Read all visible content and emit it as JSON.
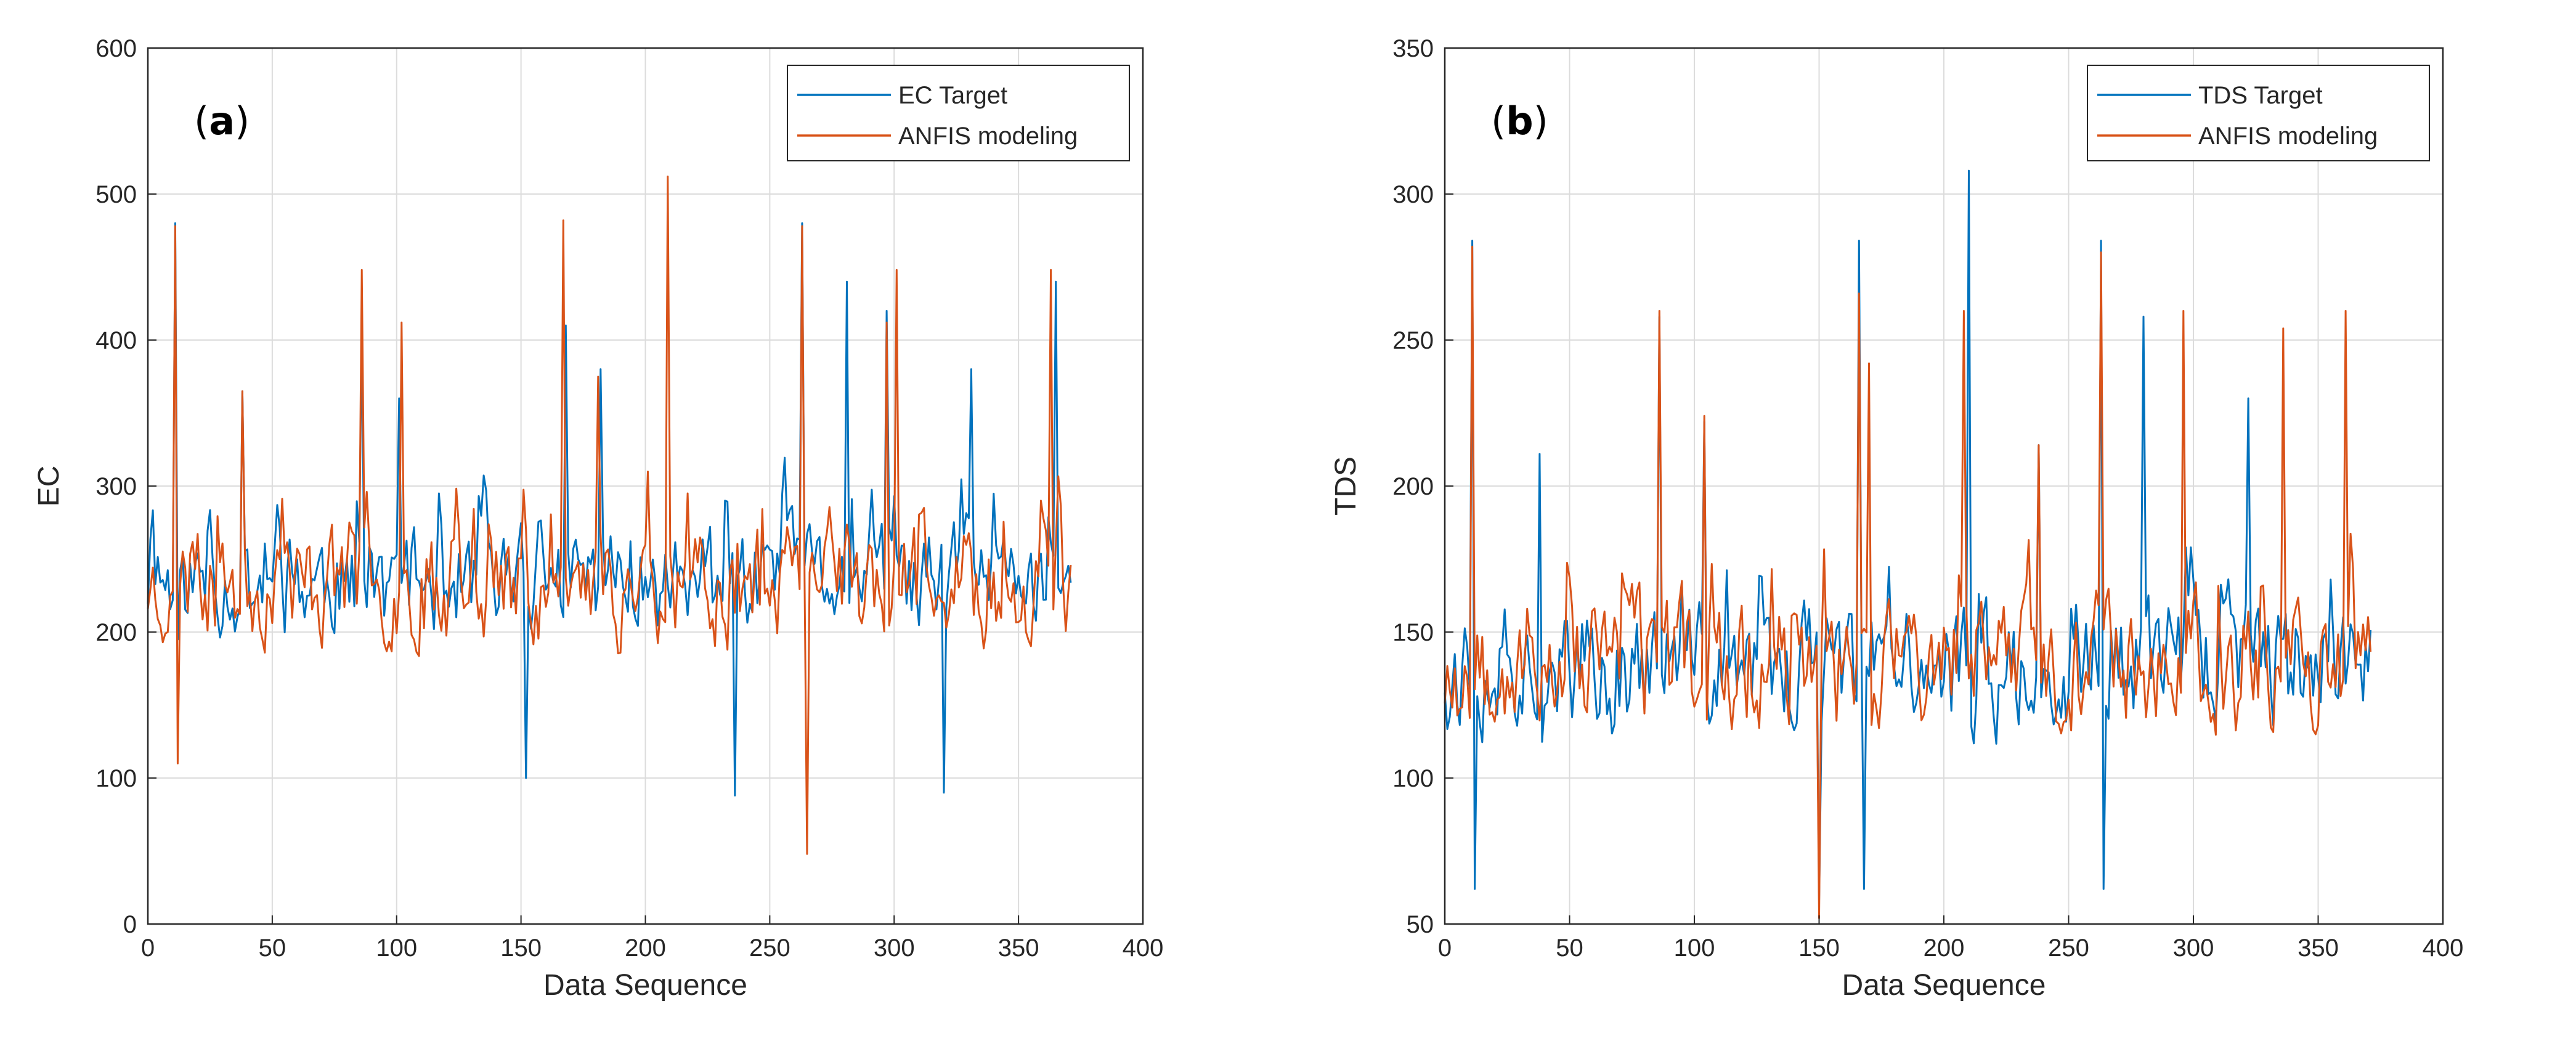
{
  "chart_data": [
    {
      "type": "line",
      "panel_label": "a",
      "title": "",
      "xlabel": "Data Sequence",
      "ylabel": "EC",
      "xlim": [
        0,
        400
      ],
      "ylim": [
        0,
        600
      ],
      "xticks": [
        0,
        50,
        100,
        150,
        200,
        250,
        300,
        350,
        400
      ],
      "yticks": [
        0,
        100,
        200,
        300,
        400,
        500,
        600
      ],
      "grid": true,
      "legend_position": "top-right",
      "n_points": 372,
      "series": [
        {
          "name": "EC Target",
          "color": "#0072BD",
          "seed": 11,
          "base": 235,
          "spread": 55,
          "low": 88,
          "high": 480,
          "spikes": [
            [
              11,
              480
            ],
            [
              38,
              365
            ],
            [
              86,
              410
            ],
            [
              101,
              360
            ],
            [
              152,
              100
            ],
            [
              168,
              410
            ],
            [
              182,
              380
            ],
            [
              236,
              88
            ],
            [
              263,
              480
            ],
            [
              281,
              440
            ],
            [
              297,
              420
            ],
            [
              320,
              90
            ],
            [
              331,
              380
            ],
            [
              365,
              440
            ]
          ]
        },
        {
          "name": "ANFIS modeling",
          "color": "#D95319",
          "seed": 23,
          "base": 232,
          "spread": 58,
          "low": 48,
          "high": 512,
          "spikes": [
            [
              11,
              478
            ],
            [
              12,
              110
            ],
            [
              38,
              365
            ],
            [
              86,
              448
            ],
            [
              102,
              412
            ],
            [
              167,
              482
            ],
            [
              181,
              375
            ],
            [
              209,
              512
            ],
            [
              265,
              48
            ],
            [
              263,
              478
            ],
            [
              301,
              448
            ],
            [
              297,
              412
            ],
            [
              363,
              448
            ]
          ]
        }
      ]
    },
    {
      "type": "line",
      "panel_label": "b",
      "title": "",
      "xlabel": "Data Sequence",
      "ylabel": "TDS",
      "xlim": [
        0,
        400
      ],
      "ylim": [
        50,
        350
      ],
      "xticks": [
        0,
        50,
        100,
        150,
        200,
        250,
        300,
        350,
        400
      ],
      "yticks": [
        50,
        100,
        150,
        200,
        250,
        300,
        350
      ],
      "grid": true,
      "legend_position": "top-right",
      "n_points": 372,
      "series": [
        {
          "name": "TDS Target",
          "color": "#0072BD",
          "seed": 37,
          "base": 138,
          "spread": 32,
          "low": 60,
          "high": 308,
          "spikes": [
            [
              11,
              284
            ],
            [
              12,
              62
            ],
            [
              38,
              211
            ],
            [
              86,
              258
            ],
            [
              104,
              222
            ],
            [
              150,
              58
            ],
            [
              166,
              284
            ],
            [
              168,
              62
            ],
            [
              210,
              308
            ],
            [
              238,
              214
            ],
            [
              263,
              284
            ],
            [
              264,
              62
            ],
            [
              280,
              258
            ],
            [
              322,
              230
            ]
          ]
        },
        {
          "name": "ANFIS modeling",
          "color": "#D95319",
          "seed": 53,
          "base": 140,
          "spread": 34,
          "low": 52,
          "high": 282,
          "spikes": [
            [
              11,
              282
            ],
            [
              86,
              260
            ],
            [
              104,
              224
            ],
            [
              150,
              52
            ],
            [
              166,
              266
            ],
            [
              170,
              242
            ],
            [
              208,
              260
            ],
            [
              238,
              214
            ],
            [
              263,
              280
            ],
            [
              296,
              260
            ],
            [
              336,
              254
            ],
            [
              361,
              260
            ]
          ]
        }
      ]
    }
  ]
}
